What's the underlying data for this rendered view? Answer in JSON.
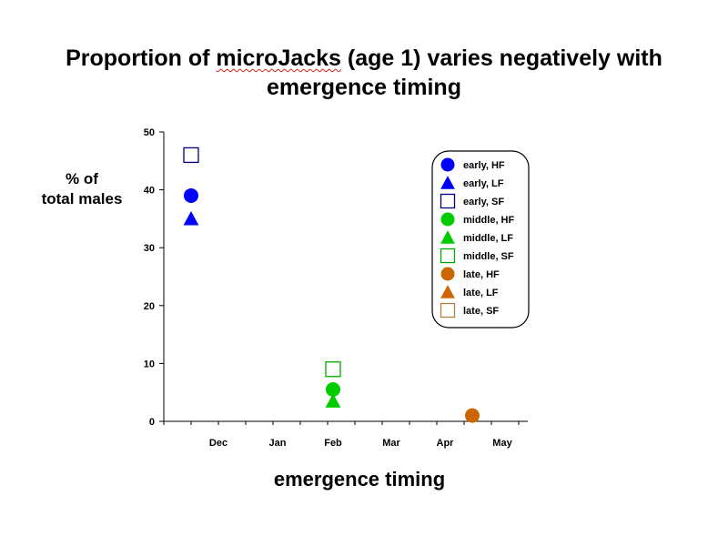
{
  "chart_data": {
    "type": "scatter",
    "title_pre": "Proportion of ",
    "title_mid": "microJacks",
    "title_post": " (age 1) varies negatively with",
    "title_line2": "emergence timing",
    "ylabel_line1": "% of",
    "ylabel_line2": "total males",
    "xlabel": "emergence timing",
    "x_categories": [
      "Dec",
      "Jan",
      "Feb",
      "Mar",
      "Apr",
      "May"
    ],
    "ylim": [
      0,
      50
    ],
    "yticks": [
      0,
      10,
      20,
      30,
      40,
      50
    ],
    "grid": false,
    "legend_position": "top-right",
    "series": [
      {
        "name": "early, HF",
        "color": "#0000ff",
        "marker": "circle",
        "x": "late Nov",
        "y": 39
      },
      {
        "name": "early, LF",
        "color": "#0000ff",
        "marker": "triangle",
        "x": "late Nov",
        "y": 35
      },
      {
        "name": "early, SF",
        "color": "#00007f",
        "marker": "square-open",
        "x": "late Nov",
        "y": 46
      },
      {
        "name": "middle, HF",
        "color": "#00cc00",
        "marker": "circle",
        "x": "Feb",
        "y": 5.5
      },
      {
        "name": "middle, LF",
        "color": "#00cc00",
        "marker": "triangle",
        "x": "Feb",
        "y": 3.5
      },
      {
        "name": "middle, SF",
        "color": "#00aa00",
        "marker": "square-open",
        "x": "Feb",
        "y": 9
      },
      {
        "name": "late, HF",
        "color": "#cc6600",
        "marker": "circle",
        "x": "mid Apr",
        "y": 1
      },
      {
        "name": "late, LF",
        "color": "#cc6600",
        "marker": "triangle",
        "x": null,
        "y": null
      },
      {
        "name": "late, SF",
        "color": "#b08040",
        "marker": "square-open",
        "x": null,
        "y": null
      }
    ]
  }
}
